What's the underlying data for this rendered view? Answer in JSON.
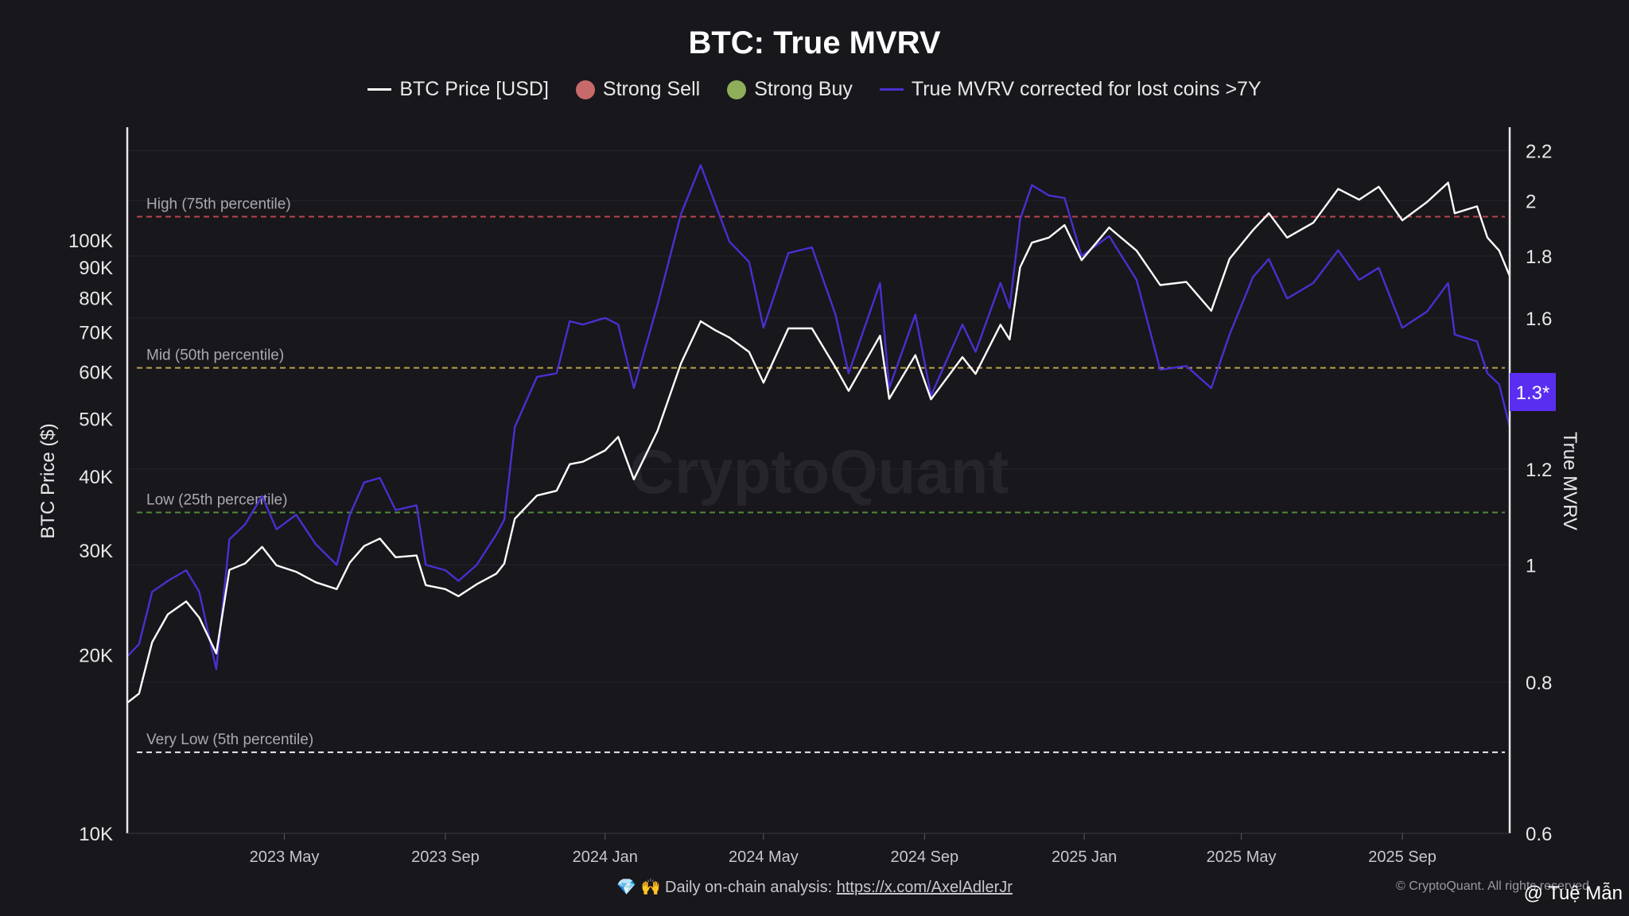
{
  "title": "BTC: True MVRV",
  "legend": [
    {
      "label": "BTC Price [USD]",
      "kind": "line",
      "color": "#ffffff"
    },
    {
      "label": "Strong Sell",
      "kind": "dot",
      "color": "#c96a6a"
    },
    {
      "label": "Strong Buy",
      "kind": "dot",
      "color": "#8fae5a"
    },
    {
      "label": "True MVRV corrected for lost coins >7Y",
      "kind": "line",
      "color": "#4a2fd0"
    }
  ],
  "watermark": "CryptoQuant",
  "footer": {
    "emoji": "💎 🙌",
    "text": "Daily on-chain analysis:",
    "link": "https://x.com/AxelAdlerJr",
    "copyright": "© CryptoQuant. All rights reserved",
    "user_tag": "@ Tuệ Mẫn"
  },
  "current_value_badge": "1.3*",
  "chart_data": {
    "type": "line",
    "x_type": "date",
    "x_range": [
      "2023-01-01",
      "2025-11-22"
    ],
    "x_ticks": [
      {
        "date": "2023-05-01",
        "label": "2023 May"
      },
      {
        "date": "2023-09-01",
        "label": "2023 Sep"
      },
      {
        "date": "2024-01-01",
        "label": "2024 Jan"
      },
      {
        "date": "2024-05-01",
        "label": "2024 May"
      },
      {
        "date": "2024-09-01",
        "label": "2024 Sep"
      },
      {
        "date": "2025-01-01",
        "label": "2025 Jan"
      },
      {
        "date": "2025-05-01",
        "label": "2025 May"
      },
      {
        "date": "2025-09-01",
        "label": "2025 Sep"
      }
    ],
    "y_left": {
      "label": "BTC Price ($)",
      "scale": "log",
      "range": [
        10000,
        155000
      ],
      "ticks": [
        {
          "v": 10000,
          "label": "10K"
        },
        {
          "v": 20000,
          "label": "20K"
        },
        {
          "v": 30000,
          "label": "30K"
        },
        {
          "v": 40000,
          "label": "40K"
        },
        {
          "v": 50000,
          "label": "50K"
        },
        {
          "v": 60000,
          "label": "60K"
        },
        {
          "v": 70000,
          "label": "70K"
        },
        {
          "v": 80000,
          "label": "80K"
        },
        {
          "v": 90000,
          "label": "90K"
        },
        {
          "v": 100000,
          "label": "100K"
        }
      ]
    },
    "y_right": {
      "label": "True MVRV",
      "scale": "log",
      "range": [
        0.6,
        2.3
      ],
      "ticks": [
        {
          "v": 0.6,
          "label": "0.6"
        },
        {
          "v": 0.8,
          "label": "0.8"
        },
        {
          "v": 1,
          "label": "1"
        },
        {
          "v": 1.2,
          "label": "1.2"
        },
        {
          "v": 1.6,
          "label": "1.6"
        },
        {
          "v": 1.8,
          "label": "1.8"
        },
        {
          "v": 2,
          "label": "2"
        },
        {
          "v": 2.2,
          "label": "2.2"
        }
      ]
    },
    "reference_lines": [
      {
        "label": "High (75th percentile)",
        "value": 1.94,
        "color": "#b8454a"
      },
      {
        "label": "Mid (50th percentile)",
        "value": 1.455,
        "color": "#b8a04a"
      },
      {
        "label": "Low (25th percentile)",
        "value": 1.105,
        "color": "#4f8a3a"
      },
      {
        "label": "Very Low (5th percentile)",
        "value": 0.7,
        "color": "#e8e8ea"
      }
    ],
    "grid": true,
    "series": [
      {
        "name": "BTC Price [USD]",
        "axis": "left",
        "color": "#ffffff",
        "points": [
          [
            "2023-01-01",
            16600
          ],
          [
            "2023-01-10",
            17200
          ],
          [
            "2023-01-20",
            21000
          ],
          [
            "2023-02-01",
            23400
          ],
          [
            "2023-02-15",
            24600
          ],
          [
            "2023-02-25",
            23100
          ],
          [
            "2023-03-10",
            20100
          ],
          [
            "2023-03-20",
            27800
          ],
          [
            "2023-04-01",
            28500
          ],
          [
            "2023-04-14",
            30400
          ],
          [
            "2023-04-25",
            28300
          ],
          [
            "2023-05-10",
            27600
          ],
          [
            "2023-05-25",
            26500
          ],
          [
            "2023-06-10",
            25800
          ],
          [
            "2023-06-20",
            28600
          ],
          [
            "2023-07-01",
            30500
          ],
          [
            "2023-07-13",
            31400
          ],
          [
            "2023-07-25",
            29200
          ],
          [
            "2023-08-10",
            29400
          ],
          [
            "2023-08-17",
            26200
          ],
          [
            "2023-09-01",
            25800
          ],
          [
            "2023-09-11",
            25100
          ],
          [
            "2023-09-25",
            26300
          ],
          [
            "2023-10-10",
            27400
          ],
          [
            "2023-10-16",
            28500
          ],
          [
            "2023-10-24",
            33900
          ],
          [
            "2023-11-10",
            37100
          ],
          [
            "2023-11-25",
            37800
          ],
          [
            "2023-12-05",
            41900
          ],
          [
            "2023-12-15",
            42300
          ],
          [
            "2024-01-01",
            44200
          ],
          [
            "2024-01-11",
            46600
          ],
          [
            "2024-01-23",
            39500
          ],
          [
            "2024-02-10",
            47700
          ],
          [
            "2024-02-28",
            62000
          ],
          [
            "2024-03-14",
            73000
          ],
          [
            "2024-03-25",
            70500
          ],
          [
            "2024-04-05",
            68500
          ],
          [
            "2024-04-20",
            64800
          ],
          [
            "2024-05-01",
            57500
          ],
          [
            "2024-05-20",
            71000
          ],
          [
            "2024-06-07",
            71000
          ],
          [
            "2024-06-25",
            61000
          ],
          [
            "2024-07-05",
            55700
          ],
          [
            "2024-07-29",
            69000
          ],
          [
            "2024-08-05",
            54000
          ],
          [
            "2024-08-25",
            64000
          ],
          [
            "2024-09-06",
            53900
          ],
          [
            "2024-09-30",
            63500
          ],
          [
            "2024-10-10",
            59500
          ],
          [
            "2024-10-29",
            72000
          ],
          [
            "2024-11-05",
            68000
          ],
          [
            "2024-11-13",
            90000
          ],
          [
            "2024-11-22",
            99000
          ],
          [
            "2024-12-05",
            101000
          ],
          [
            "2024-12-17",
            106000
          ],
          [
            "2024-12-30",
            92500
          ],
          [
            "2025-01-20",
            105000
          ],
          [
            "2025-02-10",
            96000
          ],
          [
            "2025-02-28",
            84000
          ],
          [
            "2025-03-20",
            85000
          ],
          [
            "2025-04-08",
            76000
          ],
          [
            "2025-04-22",
            93000
          ],
          [
            "2025-05-10",
            104000
          ],
          [
            "2025-05-22",
            111000
          ],
          [
            "2025-06-05",
            101000
          ],
          [
            "2025-06-25",
            107000
          ],
          [
            "2025-07-14",
            122000
          ],
          [
            "2025-07-30",
            117000
          ],
          [
            "2025-08-14",
            123000
          ],
          [
            "2025-09-01",
            108000
          ],
          [
            "2025-09-20",
            116000
          ],
          [
            "2025-10-06",
            125000
          ],
          [
            "2025-10-11",
            111000
          ],
          [
            "2025-10-28",
            114000
          ],
          [
            "2025-11-05",
            101000
          ],
          [
            "2025-11-14",
            96000
          ],
          [
            "2025-11-22",
            87000
          ]
        ]
      },
      {
        "name": "True MVRV corrected for lost coins >7Y",
        "axis": "right",
        "color": "#4a2fd0",
        "points": [
          [
            "2023-01-01",
            0.84
          ],
          [
            "2023-01-10",
            0.86
          ],
          [
            "2023-01-20",
            0.95
          ],
          [
            "2023-02-01",
            0.97
          ],
          [
            "2023-02-15",
            0.99
          ],
          [
            "2023-02-25",
            0.95
          ],
          [
            "2023-03-10",
            0.82
          ],
          [
            "2023-03-20",
            1.05
          ],
          [
            "2023-04-01",
            1.08
          ],
          [
            "2023-04-14",
            1.14
          ],
          [
            "2023-04-25",
            1.07
          ],
          [
            "2023-05-10",
            1.1
          ],
          [
            "2023-05-25",
            1.04
          ],
          [
            "2023-06-10",
            1.0
          ],
          [
            "2023-06-20",
            1.1
          ],
          [
            "2023-07-01",
            1.17
          ],
          [
            "2023-07-13",
            1.18
          ],
          [
            "2023-07-25",
            1.11
          ],
          [
            "2023-08-10",
            1.12
          ],
          [
            "2023-08-17",
            1.0
          ],
          [
            "2023-09-01",
            0.99
          ],
          [
            "2023-09-11",
            0.97
          ],
          [
            "2023-09-25",
            1.0
          ],
          [
            "2023-10-10",
            1.06
          ],
          [
            "2023-10-16",
            1.09
          ],
          [
            "2023-10-24",
            1.3
          ],
          [
            "2023-11-10",
            1.43
          ],
          [
            "2023-11-25",
            1.44
          ],
          [
            "2023-12-05",
            1.59
          ],
          [
            "2023-12-15",
            1.58
          ],
          [
            "2024-01-01",
            1.6
          ],
          [
            "2024-01-11",
            1.58
          ],
          [
            "2024-01-23",
            1.4
          ],
          [
            "2024-02-10",
            1.64
          ],
          [
            "2024-02-28",
            1.95
          ],
          [
            "2024-03-14",
            2.14
          ],
          [
            "2024-03-25",
            1.99
          ],
          [
            "2024-04-05",
            1.85
          ],
          [
            "2024-04-20",
            1.78
          ],
          [
            "2024-05-01",
            1.57
          ],
          [
            "2024-05-20",
            1.81
          ],
          [
            "2024-06-07",
            1.83
          ],
          [
            "2024-06-25",
            1.61
          ],
          [
            "2024-07-05",
            1.44
          ],
          [
            "2024-07-29",
            1.71
          ],
          [
            "2024-08-05",
            1.4
          ],
          [
            "2024-08-25",
            1.61
          ],
          [
            "2024-09-06",
            1.38
          ],
          [
            "2024-09-30",
            1.58
          ],
          [
            "2024-10-10",
            1.5
          ],
          [
            "2024-10-29",
            1.71
          ],
          [
            "2024-11-05",
            1.63
          ],
          [
            "2024-11-13",
            1.93
          ],
          [
            "2024-11-22",
            2.06
          ],
          [
            "2024-12-05",
            2.02
          ],
          [
            "2024-12-17",
            2.01
          ],
          [
            "2024-12-30",
            1.8
          ],
          [
            "2025-01-20",
            1.87
          ],
          [
            "2025-02-10",
            1.72
          ],
          [
            "2025-02-28",
            1.45
          ],
          [
            "2025-03-20",
            1.46
          ],
          [
            "2025-04-08",
            1.4
          ],
          [
            "2025-04-22",
            1.55
          ],
          [
            "2025-05-10",
            1.73
          ],
          [
            "2025-05-22",
            1.79
          ],
          [
            "2025-06-05",
            1.66
          ],
          [
            "2025-06-25",
            1.71
          ],
          [
            "2025-07-14",
            1.82
          ],
          [
            "2025-07-30",
            1.72
          ],
          [
            "2025-08-14",
            1.76
          ],
          [
            "2025-09-01",
            1.57
          ],
          [
            "2025-09-20",
            1.62
          ],
          [
            "2025-10-06",
            1.71
          ],
          [
            "2025-10-11",
            1.55
          ],
          [
            "2025-10-28",
            1.53
          ],
          [
            "2025-11-05",
            1.44
          ],
          [
            "2025-11-14",
            1.41
          ],
          [
            "2025-11-22",
            1.3
          ]
        ]
      }
    ]
  }
}
